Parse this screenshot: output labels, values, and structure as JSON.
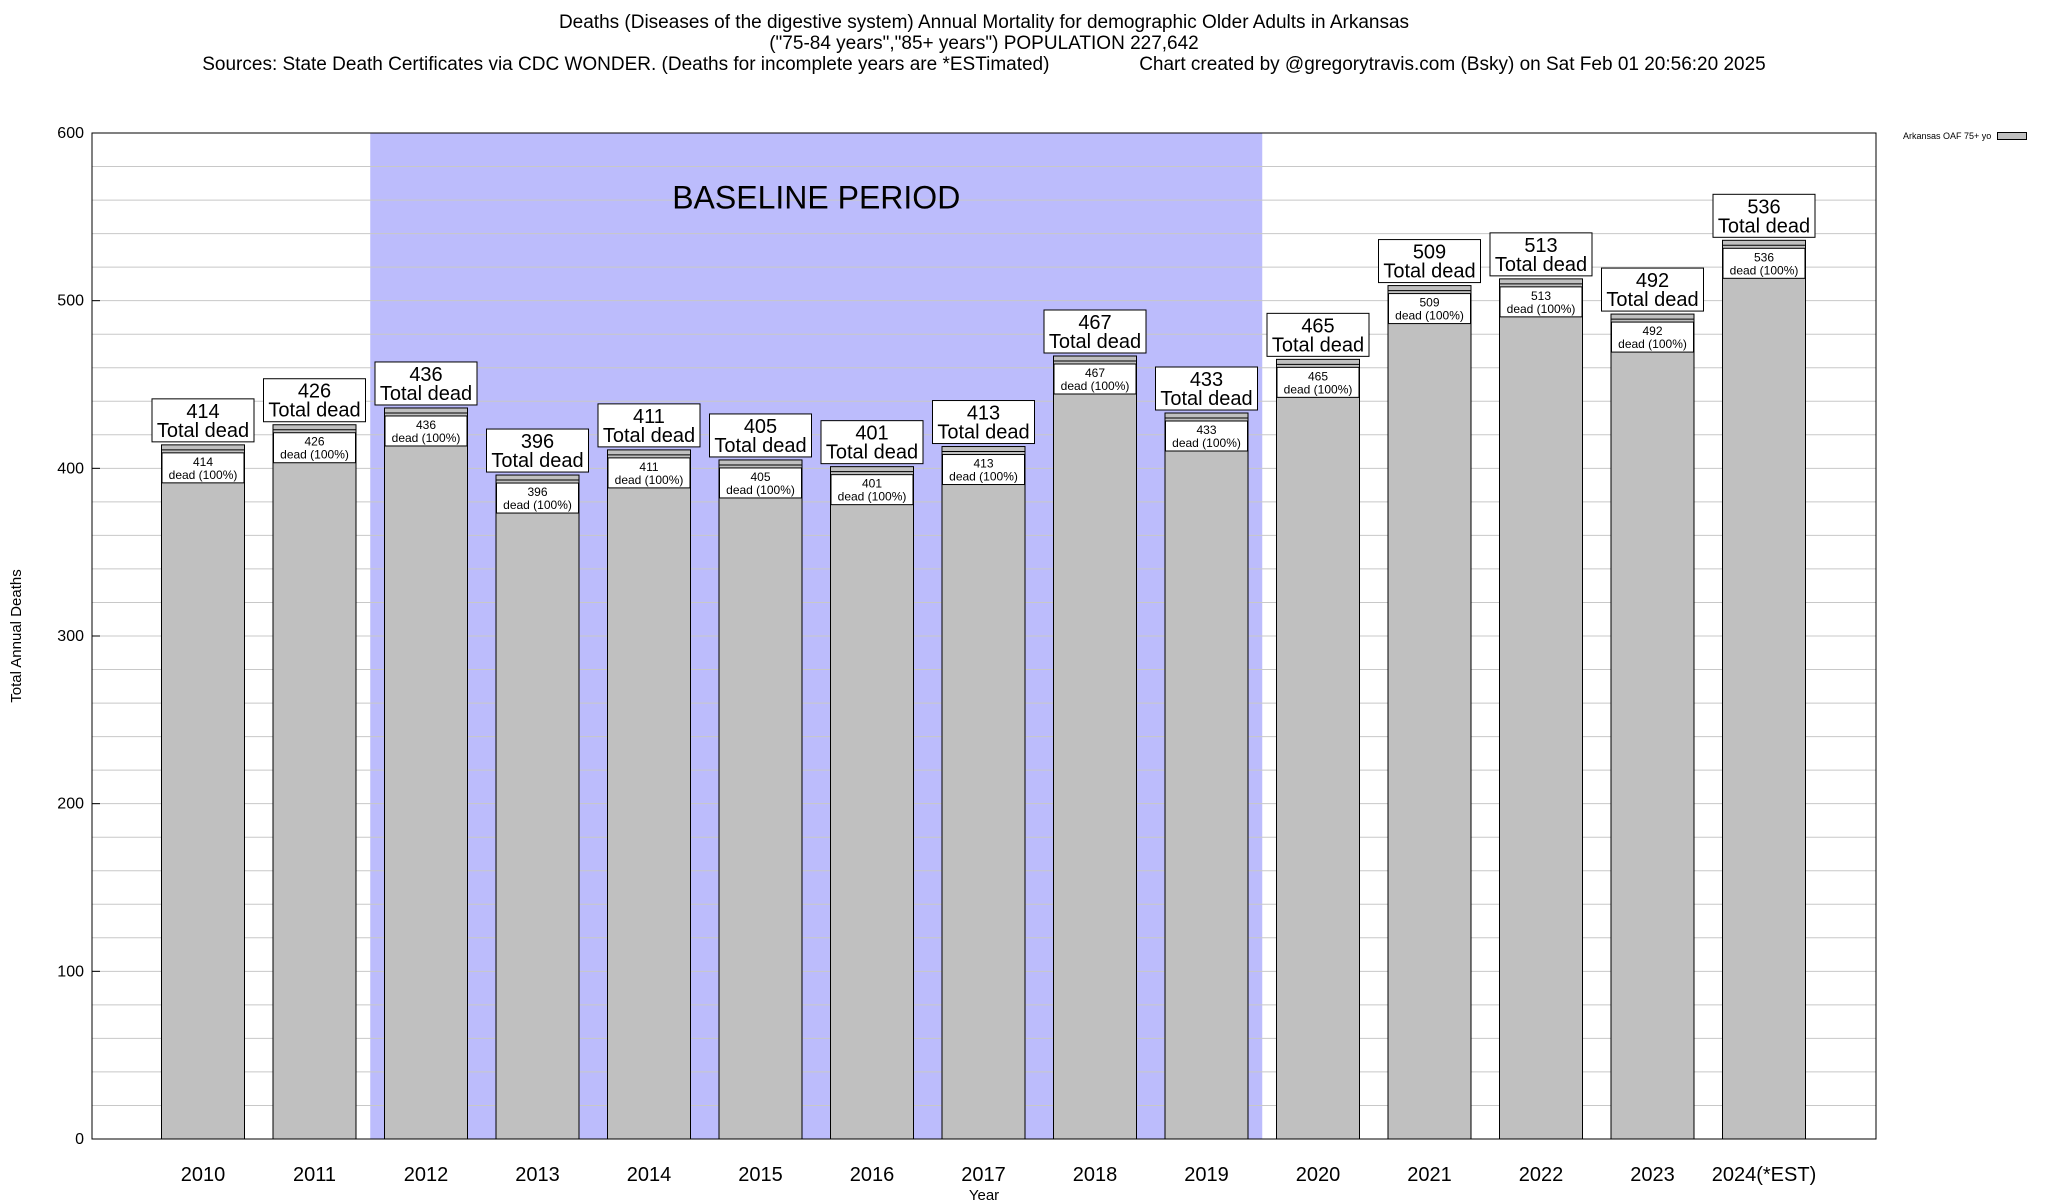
{
  "header": {
    "title_line1": "Deaths (Diseases of the digestive system) Annual Mortality for demographic Older Adults in Arkansas",
    "title_line2": "(\"75-84 years\",\"85+ years\") POPULATION 227,642",
    "title_line3": "Sources: State Death Certificates via CDC WONDER. (Deaths for incomplete years are *ESTimated)                 Chart created by @gregorytravis.com (Bsky) on Sat Feb 01 20:56:20 2025"
  },
  "legend": {
    "label": "Arkansas OAF 75+ yo"
  },
  "colors": {
    "bar": "#c0c0c0",
    "baseline": "#bcbcfc",
    "grid": "#c8c8c8"
  },
  "chart_data": {
    "type": "bar",
    "xlabel": "Year",
    "ylabel": "Total Annual Deaths",
    "ylim": [
      0,
      600
    ],
    "yticks": [
      0,
      100,
      200,
      300,
      400,
      500,
      600
    ],
    "grid": true,
    "legend_position": "top-right",
    "categories": [
      "2010",
      "2011",
      "2012",
      "2013",
      "2014",
      "2015",
      "2016",
      "2017",
      "2018",
      "2019",
      "2020",
      "2021",
      "2022",
      "2023",
      "2024(*EST)"
    ],
    "series": [
      {
        "name": "Arkansas OAF 75+ yo",
        "values": [
          414,
          426,
          436,
          396,
          411,
          405,
          401,
          413,
          467,
          433,
          465,
          509,
          513,
          492,
          536
        ]
      }
    ],
    "total_label_suffix": "Total dead",
    "inner_label_suffix": "dead (100%)",
    "annotations": [
      {
        "text": "BASELINE PERIOD",
        "from": "2012",
        "to": "2019"
      }
    ]
  }
}
